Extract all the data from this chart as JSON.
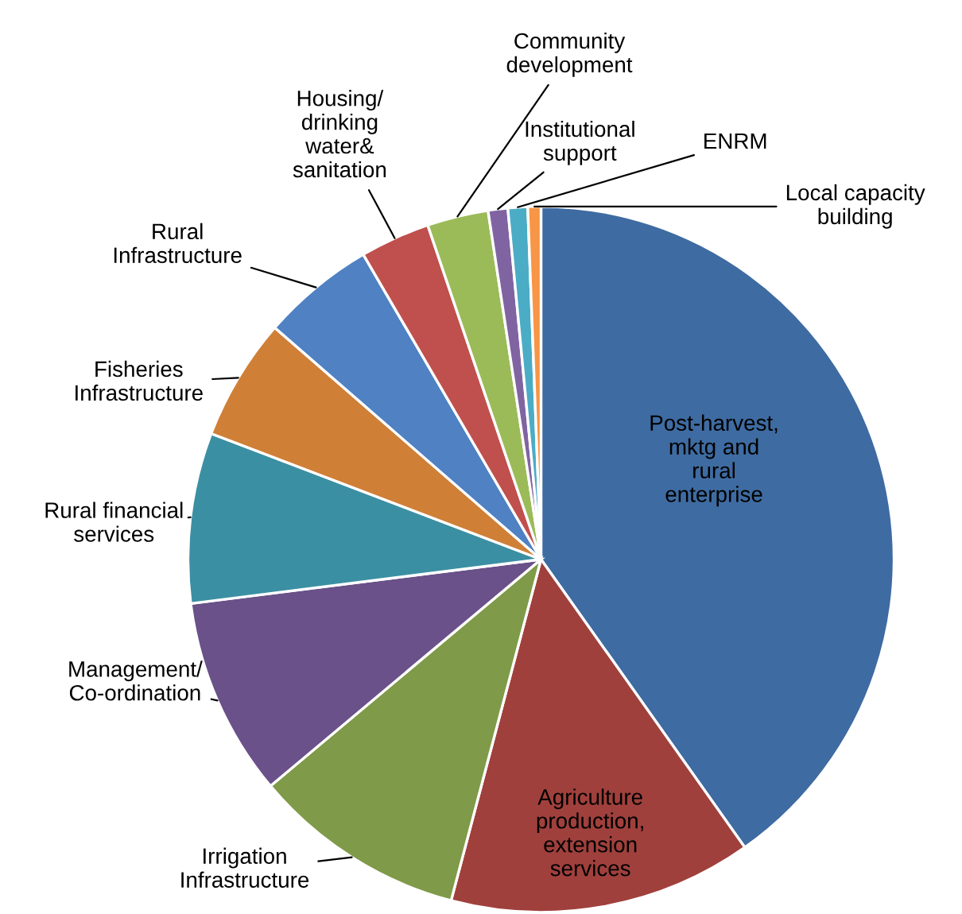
{
  "chart_data": {
    "type": "pie",
    "categories": [
      "Post-harvest,\nmktg and\nrural\nenterprise",
      "Agriculture\nproduction,\nextension\nservices",
      "Irrigation\nInfrastructure",
      "Management/\nCo-ordination",
      "Rural financial\nservices",
      "Fisheries\nInfrastructure",
      "Rural\nInfrastructure",
      "Housing/\ndrinking\nwater&\nsanitation",
      "Community\ndevelopment",
      "Institutional\nsupport",
      "ENRM",
      "Local capacity\nbuilding"
    ],
    "values": [
      40.2,
      13.9,
      9.8,
      9.1,
      7.8,
      5.6,
      5.2,
      3.2,
      2.8,
      0.9,
      0.9,
      0.6
    ],
    "colors": [
      "#3e6ba1",
      "#a0403c",
      "#7f9a48",
      "#6a5189",
      "#3b8fa3",
      "#d07f37",
      "#4f81c3",
      "#c0504d",
      "#9bbb59",
      "#8064a2",
      "#4bacc6",
      "#f79646"
    ]
  }
}
